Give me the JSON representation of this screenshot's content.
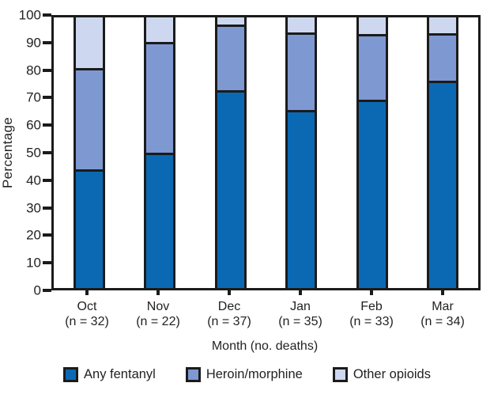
{
  "chart_data": {
    "type": "bar",
    "variant": "stacked-percentage",
    "title": "",
    "xlabel": "Month (no. deaths)",
    "ylabel": "Percentage",
    "ylim": [
      0,
      100
    ],
    "yticks": [
      0,
      10,
      20,
      30,
      40,
      50,
      60,
      70,
      80,
      90,
      100
    ],
    "grid": false,
    "legend_position": "bottom",
    "categories": [
      "Oct",
      "Nov",
      "Dec",
      "Jan",
      "Feb",
      "Mar"
    ],
    "category_sublabels": [
      "(n = 32)",
      "(n = 22)",
      "(n = 37)",
      "(n = 35)",
      "(n = 33)",
      "(n = 34)"
    ],
    "series": [
      {
        "name": "Any fentanyl",
        "color": "#0b69b4",
        "values": [
          43.8,
          50.0,
          73.0,
          65.7,
          69.7,
          76.5
        ]
      },
      {
        "name": "Heroin/morphine",
        "color": "#7e98d2",
        "values": [
          37.5,
          40.9,
          24.3,
          28.6,
          24.2,
          17.6
        ]
      },
      {
        "name": "Other opioids",
        "color": "#cdd7ef",
        "values": [
          18.7,
          9.1,
          2.7,
          5.7,
          6.1,
          5.9
        ]
      }
    ]
  },
  "colors": {
    "axis": "#1b1b1b",
    "text": "#231f20",
    "background": "#ffffff"
  }
}
